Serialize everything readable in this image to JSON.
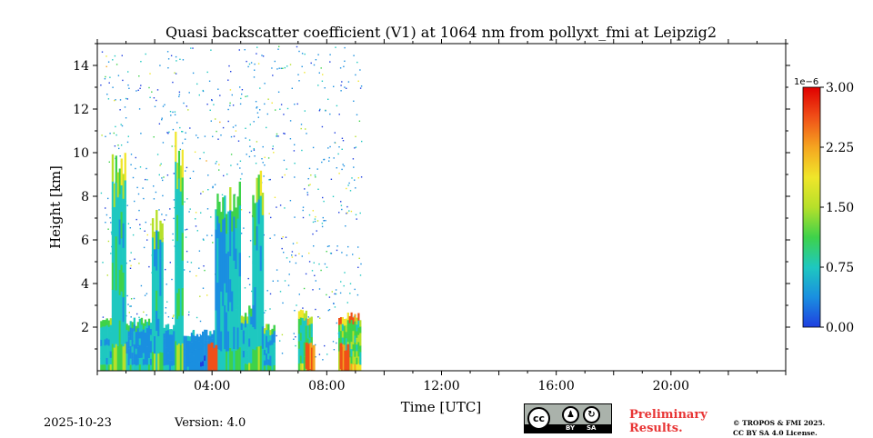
{
  "chart_data": {
    "type": "heatmap",
    "title": "Quasi backscatter coefficient (V1) at 1064 nm from pollyxt_fmi at Leipzig2",
    "xlabel": "Time [UTC]",
    "ylabel": "Height [km]",
    "xlim_hours": [
      0,
      24
    ],
    "ylim_km": [
      0,
      15
    ],
    "x_ticks": [
      {
        "value": 4,
        "label": "04:00"
      },
      {
        "value": 8,
        "label": "08:00"
      },
      {
        "value": 12,
        "label": "12:00"
      },
      {
        "value": 16,
        "label": "16:00"
      },
      {
        "value": 20,
        "label": "20:00"
      }
    ],
    "y_ticks": [
      {
        "value": 2,
        "label": "2"
      },
      {
        "value": 4,
        "label": "4"
      },
      {
        "value": 6,
        "label": "6"
      },
      {
        "value": 8,
        "label": "8"
      },
      {
        "value": 10,
        "label": "10"
      },
      {
        "value": 12,
        "label": "12"
      },
      {
        "value": 14,
        "label": "14"
      }
    ],
    "colorbar": {
      "exponent_label": "1e−6",
      "range": [
        0,
        3.0
      ],
      "ticks": [
        {
          "value": 0,
          "label": "0.00"
        },
        {
          "value": 0.75,
          "label": "0.75"
        },
        {
          "value": 1.5,
          "label": "1.50"
        },
        {
          "value": 2.25,
          "label": "2.25"
        },
        {
          "value": 3.0,
          "label": "3.00"
        }
      ],
      "colormap": [
        "#1f3fe0",
        "#1a8fe0",
        "#1ec8c0",
        "#3ed24a",
        "#b6e02a",
        "#f0e62a",
        "#f5a520",
        "#f05018",
        "#e00000"
      ]
    },
    "data_extent_hours": [
      0.1,
      9.2
    ],
    "profiles": [
      {
        "start": 0.1,
        "end": 0.5,
        "top_km": 2.6,
        "value": 0.75
      },
      {
        "start": 0.5,
        "end": 1.0,
        "top_km": 10.4,
        "value": 0.85
      },
      {
        "start": 1.0,
        "end": 1.9,
        "top_km": 2.5,
        "value": 0.55
      },
      {
        "start": 1.9,
        "end": 2.3,
        "top_km": 7.7,
        "value": 0.8
      },
      {
        "start": 2.3,
        "end": 2.7,
        "top_km": 2.2,
        "value": 0.45
      },
      {
        "start": 2.7,
        "end": 3.0,
        "top_km": 11.2,
        "value": 0.9
      },
      {
        "start": 3.0,
        "end": 4.1,
        "top_km": 1.9,
        "value": 0.3
      },
      {
        "start": 4.1,
        "end": 4.6,
        "top_km": 8.6,
        "value": 0.55
      },
      {
        "start": 4.6,
        "end": 5.0,
        "top_km": 8.7,
        "value": 0.7
      },
      {
        "start": 5.0,
        "end": 5.4,
        "top_km": 3.0,
        "value": 0.75
      },
      {
        "start": 5.4,
        "end": 5.8,
        "top_km": 9.2,
        "value": 0.8
      },
      {
        "start": 5.8,
        "end": 6.2,
        "top_km": 2.2,
        "value": 0.7
      },
      {
        "start": 7.0,
        "end": 7.5,
        "top_km": 2.8,
        "value": 1.0
      },
      {
        "start": 8.4,
        "end": 9.2,
        "top_km": 2.7,
        "value": 1.3
      }
    ],
    "surface_hotspots": [
      {
        "time": 4.0,
        "value": 2.9
      },
      {
        "time": 7.4,
        "value": 2.7
      },
      {
        "time": 8.6,
        "value": 2.9
      }
    ]
  },
  "footer": {
    "date": "2025-10-23",
    "version": "Version: 4.0",
    "license_badge": {
      "cc": "cc",
      "by": "BY",
      "sa": "SA",
      "by_icon": "person-icon",
      "sa_icon": "share-alike-icon"
    },
    "preliminary_line1": "Preliminary",
    "preliminary_line2": "Results.",
    "copyright_line1": "© TROPOS & FMI 2025.",
    "copyright_line2": "CC BY SA 4.0 License."
  }
}
